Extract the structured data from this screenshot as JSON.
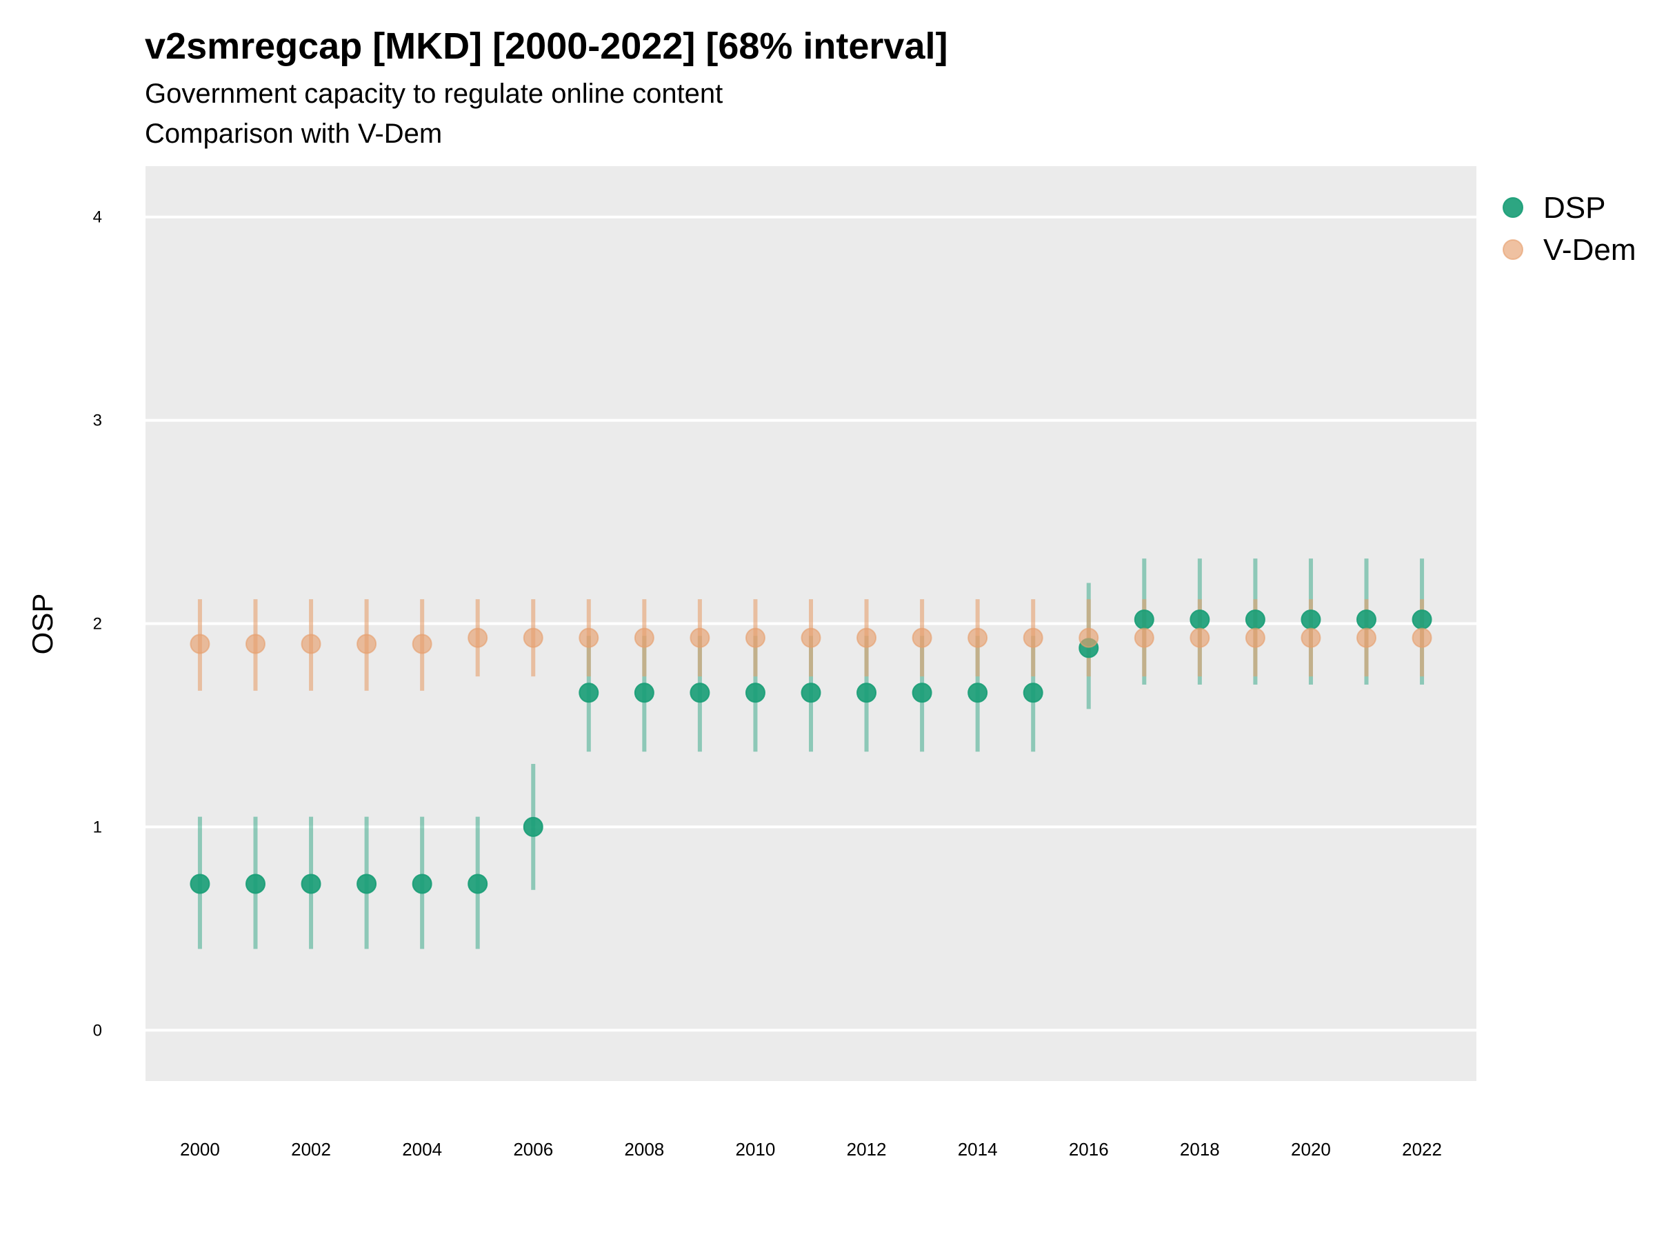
{
  "title": "v2smregcap [MKD] [2000-2022] [68% interval]",
  "subtitle_1": "Government capacity to regulate online content",
  "subtitle_2": "Comparison with V-Dem",
  "colors": {
    "dsp": "#1b9e77",
    "vdem": "#e6a06e",
    "panel": "#ebebeb",
    "grid": "#ffffff"
  },
  "chart_data": {
    "type": "scatter",
    "ylabel": "OSP",
    "xlabel": "",
    "ylim": [
      -0.25,
      4.25
    ],
    "yticks": [
      0,
      1,
      2,
      3,
      4
    ],
    "xticks": [
      2000,
      2002,
      2004,
      2006,
      2008,
      2010,
      2012,
      2014,
      2016,
      2018,
      2020,
      2022
    ],
    "grid": true,
    "legend_position": "right",
    "x": [
      2000,
      2001,
      2002,
      2003,
      2004,
      2005,
      2006,
      2007,
      2008,
      2009,
      2010,
      2011,
      2012,
      2013,
      2014,
      2015,
      2016,
      2017,
      2018,
      2019,
      2020,
      2021,
      2022
    ],
    "series": [
      {
        "name": "DSP",
        "values": [
          0.72,
          0.72,
          0.72,
          0.72,
          0.72,
          0.72,
          1.0,
          1.66,
          1.66,
          1.66,
          1.66,
          1.66,
          1.66,
          1.66,
          1.66,
          1.66,
          1.88,
          2.02,
          2.02,
          2.02,
          2.02,
          2.02,
          2.02
        ],
        "lower": [
          0.4,
          0.4,
          0.4,
          0.4,
          0.4,
          0.4,
          0.69,
          1.37,
          1.37,
          1.37,
          1.37,
          1.37,
          1.37,
          1.37,
          1.37,
          1.37,
          1.58,
          1.7,
          1.7,
          1.7,
          1.7,
          1.7,
          1.7
        ],
        "upper": [
          1.05,
          1.05,
          1.05,
          1.05,
          1.05,
          1.05,
          1.31,
          1.94,
          1.94,
          1.94,
          1.94,
          1.94,
          1.94,
          1.94,
          1.94,
          1.94,
          2.2,
          2.32,
          2.32,
          2.32,
          2.32,
          2.32,
          2.32
        ]
      },
      {
        "name": "V-Dem",
        "values": [
          1.9,
          1.9,
          1.9,
          1.9,
          1.9,
          1.93,
          1.93,
          1.93,
          1.93,
          1.93,
          1.93,
          1.93,
          1.93,
          1.93,
          1.93,
          1.93,
          1.93,
          1.93,
          1.93,
          1.93,
          1.93,
          1.93,
          1.93
        ],
        "lower": [
          1.67,
          1.67,
          1.67,
          1.67,
          1.67,
          1.74,
          1.74,
          1.74,
          1.74,
          1.74,
          1.74,
          1.74,
          1.74,
          1.74,
          1.74,
          1.74,
          1.74,
          1.74,
          1.74,
          1.74,
          1.74,
          1.74,
          1.74
        ],
        "upper": [
          2.12,
          2.12,
          2.12,
          2.12,
          2.12,
          2.12,
          2.12,
          2.12,
          2.12,
          2.12,
          2.12,
          2.12,
          2.12,
          2.12,
          2.12,
          2.12,
          2.12,
          2.12,
          2.12,
          2.12,
          2.12,
          2.12,
          2.12
        ]
      }
    ]
  }
}
